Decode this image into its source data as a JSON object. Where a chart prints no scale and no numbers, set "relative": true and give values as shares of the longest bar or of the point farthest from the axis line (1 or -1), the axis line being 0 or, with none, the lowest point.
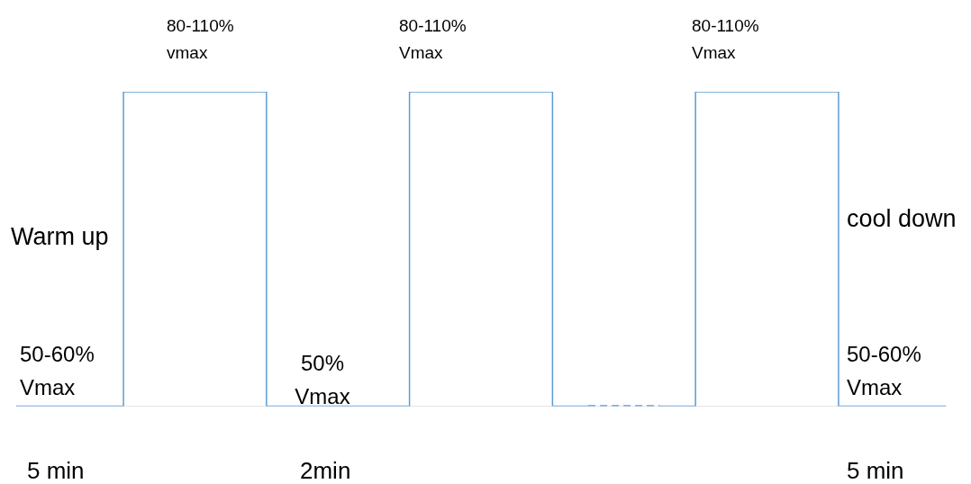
{
  "chart_data": {
    "type": "step",
    "relative": true,
    "categories": [
      null,
      null,
      null,
      null,
      null,
      null,
      null,
      null,
      null,
      null,
      null,
      null,
      null,
      null
    ],
    "series": [
      {
        "color": "#5b9bd5",
        "line_style": "solid",
        "values": [
          0,
          0,
          1,
          1,
          0,
          0,
          1,
          1,
          0,
          null,
          null,
          null,
          null,
          null
        ]
      },
      {
        "color": "#5b9bd5",
        "line_style": "dashed",
        "values": [
          null,
          null,
          null,
          null,
          null,
          null,
          null,
          null,
          0,
          0,
          null,
          null,
          null,
          null
        ]
      },
      {
        "color": "#5b9bd5",
        "line_style": "solid",
        "values": [
          null,
          null,
          null,
          null,
          null,
          null,
          null,
          null,
          null,
          0,
          1,
          1,
          0,
          0
        ]
      }
    ],
    "annotations": [
      "80-110%\nvmax",
      "80-110%\nVmax",
      "80-110%\nVmax",
      "Warm up",
      "cool down",
      "50-60%\nVmax",
      "50%\nVmax",
      "50-60%\nVmax",
      "5 min",
      "2min",
      "5 min"
    ],
    "legend": false,
    "marker": "none"
  }
}
